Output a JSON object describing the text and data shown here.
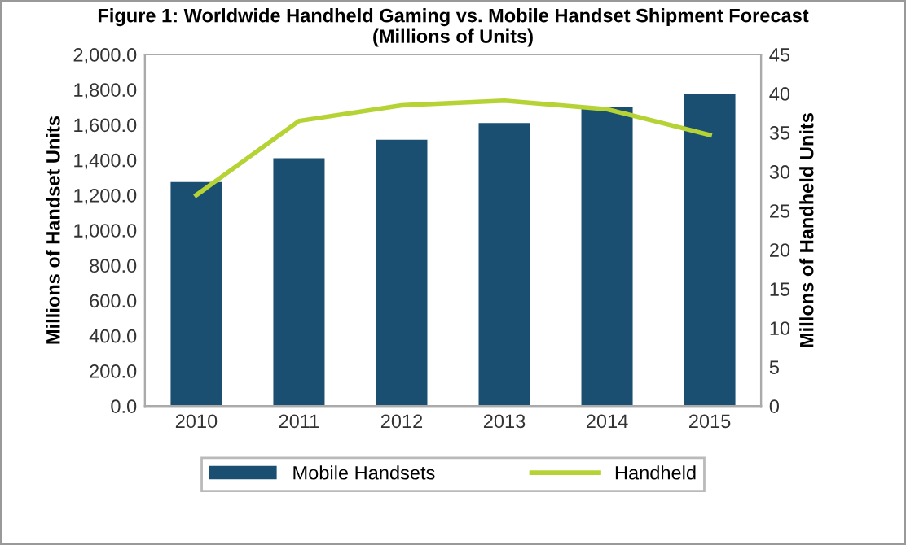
{
  "chart_data": {
    "type": "bar",
    "title": "Figure 1: Worldwide Handheld Gaming vs. Mobile Handset Shipment Forecast\n(Millions of Units)",
    "categories": [
      "2010",
      "2011",
      "2012",
      "2013",
      "2014",
      "2015"
    ],
    "series": [
      {
        "name": "Mobile Handsets",
        "color": "#1b4f72",
        "values": [
          1275,
          1410,
          1515,
          1610,
          1700,
          1775
        ]
      },
      {
        "name": "Handheld",
        "type": "line",
        "axis": "y2",
        "color": "#b5d334",
        "values": [
          27.0,
          36.5,
          38.5,
          39.1,
          38.0,
          34.7
        ]
      }
    ],
    "ylabel": "Millions of Handset Units",
    "y2label": "Millons of Handheld Units",
    "ylim": [
      0,
      2000
    ],
    "yticks": [
      {
        "value": 0,
        "label": "0.0"
      },
      {
        "value": 200,
        "label": "200.0"
      },
      {
        "value": 400,
        "label": "400.0"
      },
      {
        "value": 600,
        "label": "600.0"
      },
      {
        "value": 800,
        "label": "800.0"
      },
      {
        "value": 1000,
        "label": "1,000.0"
      },
      {
        "value": 1200,
        "label": "1,200.0"
      },
      {
        "value": 1400,
        "label": "1,400.0"
      },
      {
        "value": 1600,
        "label": "1,600.0"
      },
      {
        "value": 1800,
        "label": "1,800.0"
      },
      {
        "value": 2000,
        "label": "2,000.0"
      }
    ],
    "y2lim": [
      0,
      45
    ],
    "y2ticks": [
      0,
      5,
      10,
      15,
      20,
      25,
      30,
      35,
      40,
      45
    ],
    "legend": "bottom",
    "grid": false
  }
}
